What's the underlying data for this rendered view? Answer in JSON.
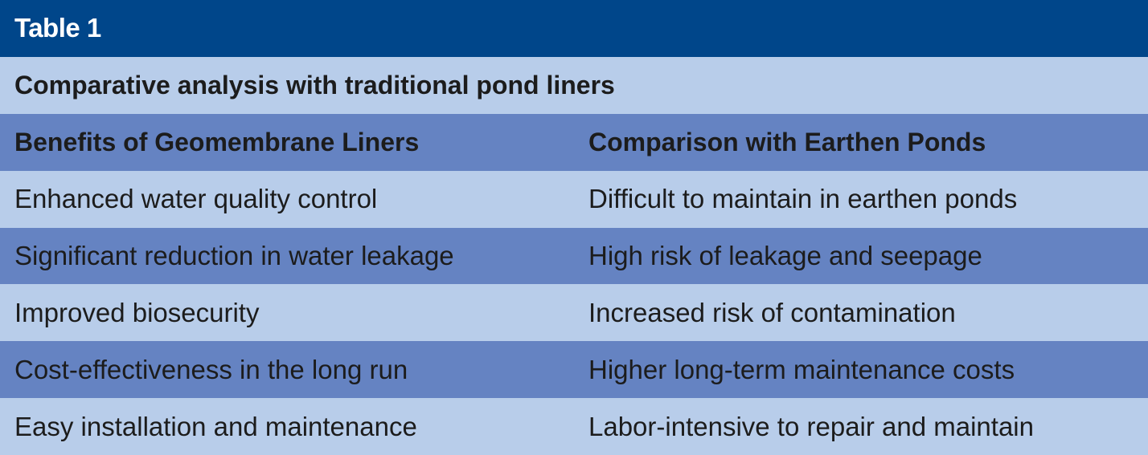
{
  "table": {
    "label": "Table 1",
    "caption": "Comparative analysis with traditional pond liners",
    "headers": [
      "Benefits of Geomembrane Liners",
      "Comparison with Earthen Ponds"
    ],
    "rows": [
      [
        "Enhanced water quality control",
        "Difficult to maintain in earthen ponds"
      ],
      [
        "Significant reduction in water leakage",
        "High risk of leakage and seepage"
      ],
      [
        "Improved biosecurity",
        "Increased risk of contamination"
      ],
      [
        "Cost-effectiveness in the long run",
        "Higher long-term maintenance costs"
      ],
      [
        "Easy installation and maintenance",
        "Labor-intensive to repair and maintain"
      ]
    ]
  },
  "colors": {
    "title_bg": "#00468a",
    "header_bg": "#6583c2",
    "row_light": "#b8cdea",
    "row_dark": "#6583c2"
  }
}
